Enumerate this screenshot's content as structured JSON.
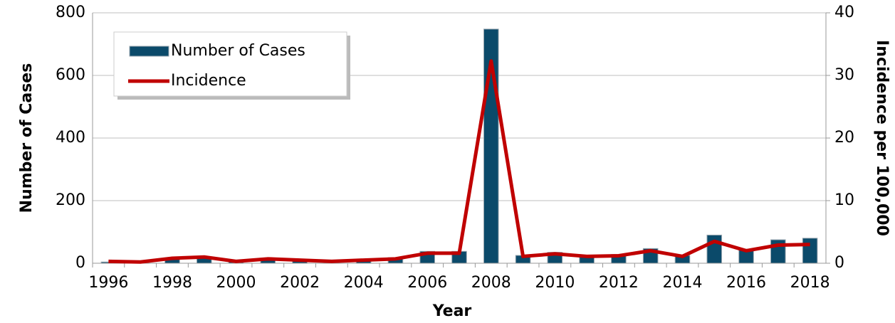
{
  "chart_data": {
    "type": "bar_line",
    "xlabel": "Year",
    "ylabel": "Number of Cases",
    "y2label": "Incidence per 100,000",
    "categories": [
      "1996",
      null,
      "1998",
      null,
      "2000",
      null,
      "2002",
      null,
      "2004",
      null,
      "2006",
      null,
      "2008",
      null,
      "2010",
      null,
      "2012",
      null,
      "2014",
      null,
      "2016",
      null,
      "2018"
    ],
    "series": [
      {
        "name": "Number of Cases",
        "type": "bar",
        "color": "#0b4a6a",
        "values": [
          4,
          2,
          15,
          20,
          5,
          15,
          12,
          8,
          12,
          18,
          38,
          38,
          748,
          25,
          35,
          25,
          28,
          47,
          25,
          90,
          45,
          75,
          80
        ]
      },
      {
        "name": "Incidence",
        "type": "line",
        "axis": "y2",
        "color": "#c00000",
        "values": [
          0.3,
          0.2,
          0.8,
          1.0,
          0.3,
          0.7,
          0.5,
          0.3,
          0.5,
          0.7,
          1.6,
          1.6,
          32.3,
          1.1,
          1.5,
          1.1,
          1.2,
          2.0,
          1.1,
          3.5,
          2.0,
          2.9,
          3.0
        ]
      }
    ],
    "ylim": [
      0,
      800
    ],
    "yticks": [
      0,
      200,
      400,
      600,
      800
    ],
    "y2lim": [
      0,
      40
    ],
    "y2ticks": [
      0,
      10,
      20,
      30,
      40
    ],
    "y2color": "#c00000",
    "grid": true,
    "legend": "upper left"
  }
}
